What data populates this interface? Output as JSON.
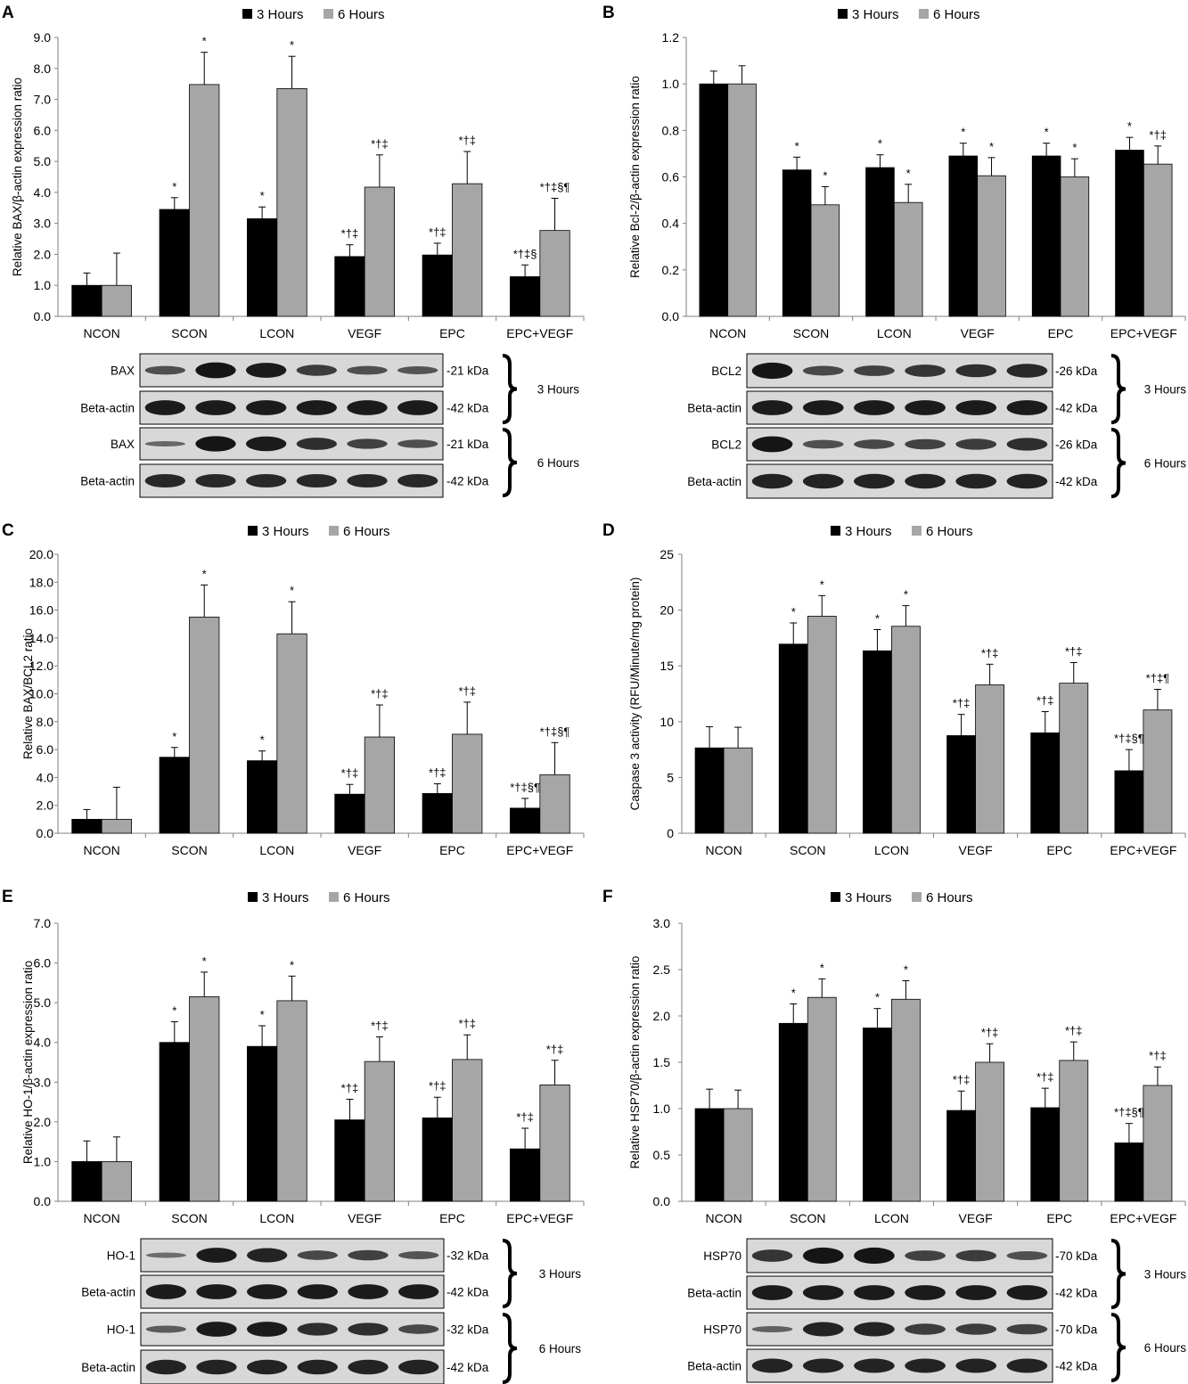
{
  "legend": {
    "series": [
      "3 Hours",
      "6 Hours"
    ]
  },
  "colors": {
    "s3": "#000000",
    "s6": "#a6a6a6",
    "blot_bg": "#d8d8d8",
    "band": "#151515"
  },
  "blot_labels": {
    "group3": "3 Hours",
    "group6": "6 Hours"
  },
  "chart_data": [
    {
      "panel": "A",
      "type": "bar",
      "ylabel": "Relative BAX/β-actin expression ratio",
      "ylim": [
        0,
        9
      ],
      "yticks": [
        "0.0",
        "1.0",
        "2.0",
        "3.0",
        "4.0",
        "5.0",
        "6.0",
        "7.0",
        "8.0",
        "9.0"
      ],
      "categories": [
        "NCON",
        "SCON",
        "LCON",
        "VEGF",
        "EPC",
        "EPC+VEGF"
      ],
      "series": [
        {
          "name": "3 Hours",
          "values": [
            1.0,
            3.45,
            3.15,
            1.93,
            1.98,
            1.28
          ],
          "errors": [
            0.4,
            0.38,
            0.38,
            0.38,
            0.38,
            0.38
          ],
          "annotations": [
            "",
            "*",
            "*",
            "*†‡",
            "*†‡",
            "*†‡§"
          ]
        },
        {
          "name": "6 Hours",
          "values": [
            1.0,
            7.48,
            7.35,
            4.17,
            4.28,
            2.77
          ],
          "errors": [
            1.04,
            1.04,
            1.04,
            1.04,
            1.04,
            1.04
          ],
          "annotations": [
            "",
            "*",
            "*",
            "*†‡",
            "*†‡",
            "*†‡§¶"
          ]
        }
      ],
      "blot": {
        "rows": [
          {
            "label": "BAX",
            "kda": "-21 kDa",
            "intensity": [
              0.55,
              1.0,
              0.95,
              0.7,
              0.55,
              0.5
            ]
          },
          {
            "label": "Beta-actin",
            "kda": "-42 kDa",
            "intensity": [
              0.95,
              0.95,
              0.95,
              0.95,
              0.95,
              0.95
            ]
          },
          {
            "label": "BAX",
            "kda": "-21 kDa",
            "intensity": [
              0.35,
              1.0,
              0.95,
              0.8,
              0.65,
              0.55
            ]
          },
          {
            "label": "Beta-actin",
            "kda": "-42 kDa",
            "intensity": [
              0.85,
              0.85,
              0.85,
              0.85,
              0.85,
              0.85
            ]
          }
        ]
      }
    },
    {
      "panel": "B",
      "type": "bar",
      "ylabel": "Relative Bcl-2/β-actin expression ratio",
      "ylim": [
        0,
        1.2
      ],
      "yticks": [
        "0.0",
        "0.2",
        "0.4",
        "0.6",
        "0.8",
        "1.0",
        "1.2"
      ],
      "categories": [
        "NCON",
        "SCON",
        "LCON",
        "VEGF",
        "EPC",
        "EPC+VEGF"
      ],
      "series": [
        {
          "name": "3 Hours",
          "values": [
            1.0,
            0.63,
            0.64,
            0.69,
            0.69,
            0.715
          ],
          "errors": [
            0.055,
            0.055,
            0.055,
            0.055,
            0.055,
            0.055
          ],
          "annotations": [
            "",
            "*",
            "*",
            "*",
            "*",
            "*"
          ]
        },
        {
          "name": "6 Hours",
          "values": [
            1.0,
            0.48,
            0.49,
            0.605,
            0.6,
            0.655
          ],
          "errors": [
            0.078,
            0.078,
            0.078,
            0.078,
            0.078,
            0.078
          ],
          "annotations": [
            "",
            "*",
            "*",
            "*",
            "*",
            "*†‡"
          ]
        }
      ],
      "blot": {
        "rows": [
          {
            "label": "BCL2",
            "kda": "-26 kDa",
            "intensity": [
              1.0,
              0.6,
              0.65,
              0.75,
              0.8,
              0.85
            ]
          },
          {
            "label": "Beta-actin",
            "kda": "-42 kDa",
            "intensity": [
              0.95,
              0.95,
              0.95,
              0.95,
              0.95,
              0.95
            ]
          },
          {
            "label": "BCL2",
            "kda": "-26 kDa",
            "intensity": [
              1.0,
              0.55,
              0.6,
              0.65,
              0.7,
              0.8
            ]
          },
          {
            "label": "Beta-actin",
            "kda": "-42 kDa",
            "intensity": [
              0.9,
              0.9,
              0.9,
              0.9,
              0.9,
              0.9
            ]
          }
        ]
      }
    },
    {
      "panel": "C",
      "type": "bar",
      "ylabel": "Relative BAX/BCL2 ratio",
      "ylim": [
        0,
        20
      ],
      "yticks": [
        "0.0",
        "2.0",
        "4.0",
        "6.0",
        "8.0",
        "10.0",
        "12.0",
        "14.0",
        "16.0",
        "18.0",
        "20.0"
      ],
      "categories": [
        "NCON",
        "SCON",
        "LCON",
        "VEGF",
        "EPC",
        "EPC+VEGF"
      ],
      "series": [
        {
          "name": "3 Hours",
          "values": [
            1.0,
            5.45,
            5.2,
            2.8,
            2.85,
            1.8
          ],
          "errors": [
            0.7,
            0.7,
            0.7,
            0.7,
            0.7,
            0.7
          ],
          "annotations": [
            "",
            "*",
            "*",
            "*†‡",
            "*†‡",
            "*†‡§¶"
          ]
        },
        {
          "name": "6 Hours",
          "values": [
            1.0,
            15.5,
            14.3,
            6.9,
            7.1,
            4.2
          ],
          "errors": [
            2.3,
            2.3,
            2.3,
            2.3,
            2.3,
            2.3
          ],
          "annotations": [
            "",
            "*",
            "*",
            "*†‡",
            "*†‡",
            "*†‡§¶"
          ]
        }
      ]
    },
    {
      "panel": "D",
      "type": "bar",
      "ylabel": "Caspase 3 activity (RFU/Minute/mg protein)",
      "ylim": [
        0,
        25
      ],
      "yticks": [
        "0",
        "5",
        "10",
        "15",
        "20",
        "25"
      ],
      "categories": [
        "NCON",
        "SCON",
        "LCON",
        "VEGF",
        "EPC",
        "EPC+VEGF"
      ],
      "series": [
        {
          "name": "3 Hours",
          "values": [
            7.65,
            16.95,
            16.35,
            8.75,
            9.0,
            5.6
          ],
          "errors": [
            1.9,
            1.9,
            1.9,
            1.9,
            1.9,
            1.9
          ],
          "annotations": [
            "",
            "*",
            "*",
            "*†‡",
            "*†‡",
            "*†‡§¶"
          ]
        },
        {
          "name": "6 Hours",
          "values": [
            7.65,
            19.45,
            18.55,
            13.3,
            13.45,
            11.05
          ],
          "errors": [
            1.85,
            1.85,
            1.85,
            1.85,
            1.85,
            1.85
          ],
          "annotations": [
            "",
            "*",
            "*",
            "*†‡",
            "*†‡",
            "*†‡¶"
          ]
        }
      ]
    },
    {
      "panel": "E",
      "type": "bar",
      "ylabel": "Relative HO-1/β-actin expression ratio",
      "ylim": [
        0,
        7
      ],
      "yticks": [
        "0.0",
        "1.0",
        "2.0",
        "3.0",
        "4.0",
        "5.0",
        "6.0",
        "7.0"
      ],
      "categories": [
        "NCON",
        "SCON",
        "LCON",
        "VEGF",
        "EPC",
        "EPC+VEGF"
      ],
      "series": [
        {
          "name": "3 Hours",
          "values": [
            1.0,
            4.0,
            3.9,
            2.05,
            2.1,
            1.32
          ],
          "errors": [
            0.52,
            0.52,
            0.52,
            0.52,
            0.52,
            0.52
          ],
          "annotations": [
            "",
            "*",
            "*",
            "*†‡",
            "*†‡",
            "*†‡"
          ]
        },
        {
          "name": "6 Hours",
          "values": [
            1.0,
            5.15,
            5.05,
            3.52,
            3.57,
            2.93
          ],
          "errors": [
            0.62,
            0.62,
            0.62,
            0.62,
            0.62,
            0.62
          ],
          "annotations": [
            "",
            "*",
            "*",
            "*†‡",
            "*†‡",
            "*†‡"
          ]
        }
      ],
      "blot": {
        "rows": [
          {
            "label": "HO-1",
            "kda": "-32 kDa",
            "intensity": [
              0.3,
              0.95,
              0.9,
              0.6,
              0.65,
              0.5
            ]
          },
          {
            "label": "Beta-actin",
            "kda": "-42 kDa",
            "intensity": [
              0.95,
              0.95,
              0.95,
              0.95,
              0.95,
              0.95
            ]
          },
          {
            "label": "HO-1",
            "kda": "-32 kDa",
            "intensity": [
              0.45,
              0.95,
              0.95,
              0.8,
              0.8,
              0.6
            ]
          },
          {
            "label": "Beta-actin",
            "kda": "-42 kDa",
            "intensity": [
              0.9,
              0.9,
              0.9,
              0.9,
              0.9,
              0.9
            ]
          }
        ]
      }
    },
    {
      "panel": "F",
      "type": "bar",
      "ylabel": "Relative HSP70/β-actin expression ratio",
      "ylim": [
        0,
        3
      ],
      "yticks": [
        "0.0",
        "0.5",
        "1.0",
        "1.5",
        "2.0",
        "2.5",
        "3.0"
      ],
      "categories": [
        "NCON",
        "SCON",
        "LCON",
        "VEGF",
        "EPC",
        "EPC+VEGF"
      ],
      "series": [
        {
          "name": "3 Hours",
          "values": [
            1.0,
            1.92,
            1.87,
            0.98,
            1.01,
            0.63
          ],
          "errors": [
            0.21,
            0.21,
            0.21,
            0.21,
            0.21,
            0.21
          ],
          "annotations": [
            "",
            "*",
            "*",
            "*†‡",
            "*†‡",
            "*†‡§¶"
          ]
        },
        {
          "name": "6 Hours",
          "values": [
            1.0,
            2.2,
            2.18,
            1.5,
            1.52,
            1.25
          ],
          "errors": [
            0.2,
            0.2,
            0.2,
            0.2,
            0.2,
            0.2
          ],
          "annotations": [
            "",
            "*",
            "*",
            "*†‡",
            "*†‡",
            "*†‡"
          ]
        }
      ],
      "blot": {
        "rows": [
          {
            "label": "HSP70",
            "kda": "-70 kDa",
            "intensity": [
              0.75,
              1.0,
              1.0,
              0.65,
              0.7,
              0.55
            ]
          },
          {
            "label": "Beta-actin",
            "kda": "-42 kDa",
            "intensity": [
              0.95,
              0.95,
              0.95,
              0.95,
              0.95,
              0.95
            ]
          },
          {
            "label": "HSP70",
            "kda": "-70 kDa",
            "intensity": [
              0.4,
              0.9,
              0.9,
              0.7,
              0.7,
              0.65
            ]
          },
          {
            "label": "Beta-actin",
            "kda": "-42 kDa",
            "intensity": [
              0.9,
              0.9,
              0.9,
              0.9,
              0.9,
              0.9
            ]
          }
        ]
      }
    }
  ]
}
